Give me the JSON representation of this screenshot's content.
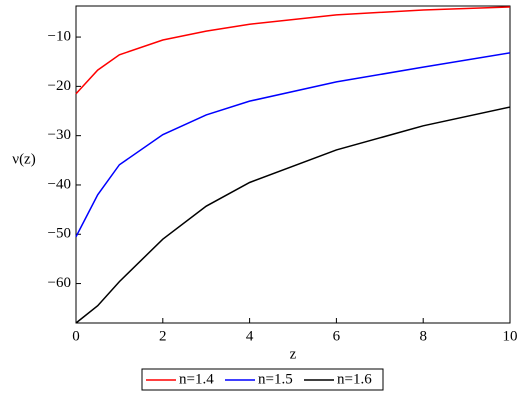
{
  "chart_data": {
    "type": "line",
    "x_label": "z",
    "y_label": "ν(z)",
    "x": [
      0,
      0.5,
      1,
      2,
      3,
      4,
      6,
      8,
      10
    ],
    "series": [
      {
        "name": "n=1.4",
        "color": "#ff0000",
        "values": [
          -21.5,
          -16.7,
          -13.6,
          -10.6,
          -8.8,
          -7.4,
          -5.5,
          -4.5,
          -3.9
        ]
      },
      {
        "name": "n=1.5",
        "color": "#0000ff",
        "values": [
          -50.5,
          -42,
          -35.9,
          -29.8,
          -25.8,
          -23,
          -19.1,
          -16.1,
          -13.2
        ]
      },
      {
        "name": "n=1.6",
        "color": "#000000",
        "values": [
          -68,
          -64.5,
          -59.6,
          -51,
          -44.3,
          -39.5,
          -32.9,
          -28,
          -24.2
        ]
      }
    ],
    "xlim": [
      0,
      10
    ],
    "xticks": [
      0,
      2,
      4,
      6,
      8,
      10
    ],
    "ylim": [
      -68,
      -3.7
    ],
    "yticks": [
      {
        "value": -10,
        "label": "−10"
      },
      {
        "value": -20,
        "label": "−20"
      },
      {
        "value": -30,
        "label": "−30"
      },
      {
        "value": -40,
        "label": "−40"
      },
      {
        "value": -50,
        "label": "−50"
      },
      {
        "value": -60,
        "label": "−60"
      }
    ],
    "legend": "bottom"
  }
}
